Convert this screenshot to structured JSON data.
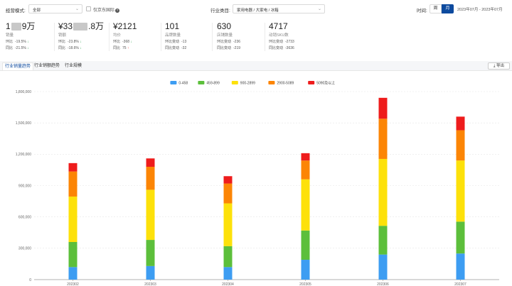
{
  "filters": {
    "mode_label": "经营模式:",
    "mode_value": "全部",
    "jd_intl_label": "仅京东国际",
    "category_label": "行业类目:",
    "category_value": "家用电器 / 大家电 / 冰箱",
    "time_label": "时间:",
    "week_label": "周",
    "month_label": "月",
    "date_range": "2023年07月 - 2023年07月"
  },
  "kpis": [
    {
      "value_pre": "1",
      "value_post": "9万",
      "label": "销量",
      "l1k": "环比",
      "l1v": "-19.5%",
      "l2k": "同比",
      "l2v": "-21.5%"
    },
    {
      "value_pre": "¥33",
      "value_post": ".8万",
      "label": "销额",
      "l1k": "环比",
      "l1v": "-23.8%",
      "l2k": "同比",
      "l2v": "-18.6%"
    },
    {
      "value_pre": "¥2121",
      "value_post": "",
      "label": "均价",
      "l1k": "环比",
      "l1v": "-368",
      "l2k": "同比",
      "l2v": "75"
    },
    {
      "value_pre": "101",
      "value_post": "",
      "label": "品牌数量",
      "l1k": "环比变动",
      "l1v": "-13",
      "l2k": "同比变动",
      "l2v": "-32"
    },
    {
      "value_pre": "630",
      "value_post": "",
      "label": "店铺数量",
      "l1k": "环比变动",
      "l1v": "-236",
      "l2k": "同比变动",
      "l2v": "-219"
    },
    {
      "value_pre": "4717",
      "value_post": "",
      "label": "动销SKU数",
      "l1k": "环比变动",
      "l1v": "-2733",
      "l2k": "同比变动",
      "l2v": "-3636"
    }
  ],
  "tabs": [
    "行业销量趋势",
    "行业销额趋势",
    "行业规模"
  ],
  "export_label": "导出",
  "colors": {
    "accent": "#0d4a9e",
    "down": "#3aa657"
  },
  "chart_data": {
    "type": "bar",
    "stacked": true,
    "categories": [
      "202302",
      "202303",
      "202304",
      "202305",
      "202306",
      "202307"
    ],
    "series": [
      {
        "name": "0-458",
        "color": "#3d9df2",
        "values": [
          120000,
          130000,
          120000,
          190000,
          240000,
          250000
        ]
      },
      {
        "name": "459-899",
        "color": "#5cbf3b",
        "values": [
          240000,
          250000,
          200000,
          280000,
          275000,
          305000
        ]
      },
      {
        "name": "900-2899",
        "color": "#fde10a",
        "values": [
          435000,
          480000,
          410000,
          490000,
          640000,
          585000
        ]
      },
      {
        "name": "2900-5089",
        "color": "#fc8505",
        "values": [
          240000,
          220000,
          190000,
          180000,
          385000,
          290000
        ]
      },
      {
        "name": "5090及以上",
        "color": "#ee1c1c",
        "values": [
          80000,
          80000,
          70000,
          70000,
          200000,
          130000
        ]
      }
    ],
    "y_ticks": [
      "0",
      "300,000",
      "600,000",
      "900,000",
      "1,200,000",
      "1,500,000",
      "1,800,000"
    ],
    "ylim": [
      0,
      1800000
    ],
    "legend_position": "top-center",
    "grid": true
  }
}
